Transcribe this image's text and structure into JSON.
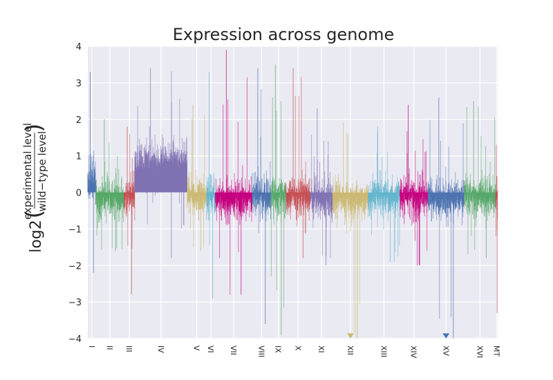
{
  "chart_data": {
    "type": "bar",
    "title": "Expression across genome",
    "ylabel": {
      "prefix": "log2",
      "numerator": "experimental level",
      "denominator": "wild−type level"
    },
    "ylim": [
      -4,
      4
    ],
    "yticks": [
      "−4",
      "−3",
      "−2",
      "−1",
      "0",
      "1",
      "2",
      "3",
      "4"
    ],
    "grid": true,
    "palette": [
      "#4c72b0",
      "#55a868",
      "#c44e52",
      "#8172b2",
      "#ccb974",
      "#64b5cd",
      "#c5007e"
    ],
    "offscale_markers": [
      {
        "chromosome": "XII",
        "direction": "down",
        "color": "#ccb974"
      },
      {
        "chromosome": "XV",
        "direction": "down",
        "color": "#4c72b0"
      }
    ],
    "chromosomes": [
      {
        "name": "I",
        "genes": 120,
        "color": "#4c72b0",
        "base": 0.3,
        "amp": 1.0,
        "min": -2.2,
        "max": 3.3
      },
      {
        "name": "II",
        "genes": 420,
        "color": "#55a868",
        "base": -0.2,
        "amp": 0.9,
        "min": -1.6,
        "max": 2.0
      },
      {
        "name": "III",
        "genes": 160,
        "color": "#c44e52",
        "base": -0.1,
        "amp": 0.9,
        "min": -2.8,
        "max": 1.8
      },
      {
        "name": "IV",
        "genes": 780,
        "color": "#8172b2",
        "base": 0.8,
        "amp": 0.9,
        "min": -1.8,
        "max": 3.4
      },
      {
        "name": "V",
        "genes": 290,
        "color": "#ccb974",
        "base": -0.1,
        "amp": 0.9,
        "min": -1.6,
        "max": 2.4
      },
      {
        "name": "VI",
        "genes": 130,
        "color": "#64b5cd",
        "base": -0.1,
        "amp": 1.0,
        "min": -2.9,
        "max": 3.3
      },
      {
        "name": "VII",
        "genes": 550,
        "color": "#c5007e",
        "base": -0.2,
        "amp": 0.9,
        "min": -2.8,
        "max": 3.9
      },
      {
        "name": "VIII",
        "genes": 280,
        "color": "#4c72b0",
        "base": -0.1,
        "amp": 1.0,
        "min": -3.6,
        "max": 3.4
      },
      {
        "name": "IX",
        "genes": 220,
        "color": "#55a868",
        "base": -0.1,
        "amp": 1.0,
        "min": -3.9,
        "max": 3.5
      },
      {
        "name": "X",
        "genes": 370,
        "color": "#c44e52",
        "base": -0.1,
        "amp": 0.9,
        "min": -1.8,
        "max": 3.4
      },
      {
        "name": "XI",
        "genes": 330,
        "color": "#8172b2",
        "base": -0.2,
        "amp": 0.9,
        "min": -2.0,
        "max": 2.3
      },
      {
        "name": "XII",
        "genes": 530,
        "color": "#ccb974",
        "base": -0.2,
        "amp": 0.9,
        "min": -4.0,
        "max": 1.9
      },
      {
        "name": "XIII",
        "genes": 470,
        "color": "#64b5cd",
        "base": -0.1,
        "amp": 0.9,
        "min": -1.9,
        "max": 1.8
      },
      {
        "name": "XIV",
        "genes": 420,
        "color": "#c5007e",
        "base": -0.1,
        "amp": 0.9,
        "min": -2.0,
        "max": 2.4
      },
      {
        "name": "XV",
        "genes": 540,
        "color": "#4c72b0",
        "base": -0.2,
        "amp": 0.9,
        "min": -4.0,
        "max": 2.6
      },
      {
        "name": "XVI",
        "genes": 470,
        "color": "#55a868",
        "base": -0.1,
        "amp": 0.9,
        "min": -1.8,
        "max": 2.5
      },
      {
        "name": "MT",
        "genes": 30,
        "color": "#c44e52",
        "base": -0.3,
        "amp": 1.4,
        "min": -3.3,
        "max": 1.3
      }
    ]
  }
}
